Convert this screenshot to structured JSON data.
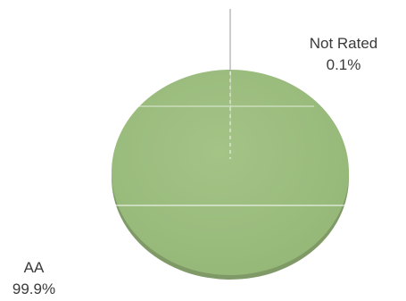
{
  "chart_data": {
    "type": "pie",
    "title": "",
    "slices": [
      {
        "label": "Not Rated",
        "value": 0.1,
        "value_label": "0.1%",
        "color": "#d9dcc8"
      },
      {
        "label": "AA",
        "value": 99.9,
        "value_label": "99.9%",
        "color": "#9cbe7f"
      }
    ],
    "legend": "none",
    "labels_outside": true
  }
}
